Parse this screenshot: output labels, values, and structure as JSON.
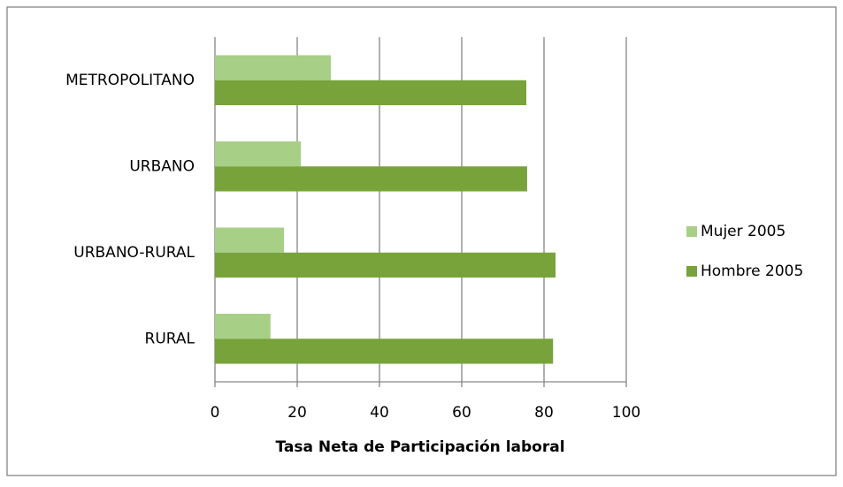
{
  "chart_data": {
    "type": "bar",
    "orientation": "horizontal",
    "categories": [
      "METROPOLITANO",
      "URBANO",
      "URBANO-RURAL",
      "RURAL"
    ],
    "series": [
      {
        "name": "Mujer 2005",
        "color": "#a8cf86",
        "values": [
          28.2,
          20.9,
          16.8,
          13.5
        ]
      },
      {
        "name": "Hombre 2005",
        "color": "#77a33a",
        "values": [
          75.7,
          75.9,
          82.8,
          82.2
        ]
      }
    ],
    "xlabel": "Tasa Neta de Participación laboral",
    "xlim": [
      0,
      100
    ],
    "xticks": [
      0,
      20,
      40,
      60,
      80,
      100
    ],
    "grid": true,
    "legend": "right"
  }
}
